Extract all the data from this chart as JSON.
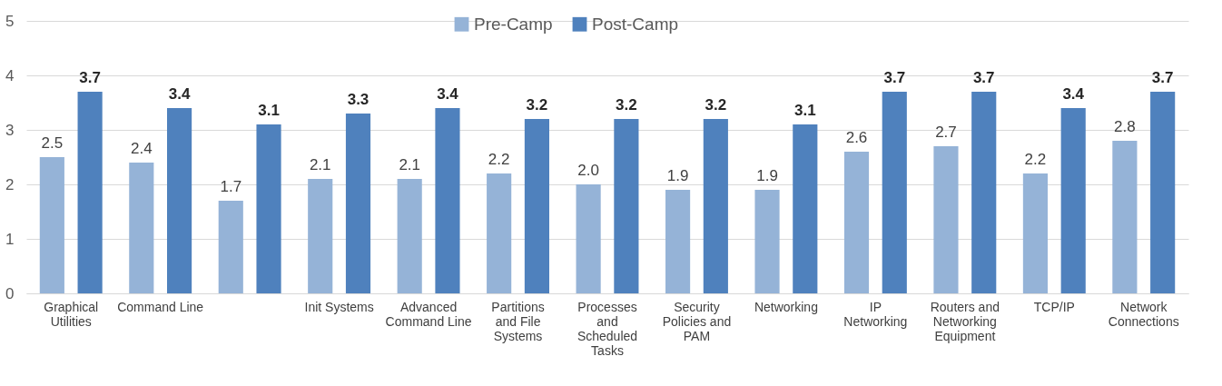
{
  "chart_data": {
    "type": "bar",
    "categories": [
      "Graphical Utilities",
      "Command Line",
      null,
      "Init Systems",
      "Advanced Command Line",
      "Partitions and File Systems",
      "Processes and Scheduled Tasks",
      "Security Policies and PAM",
      "Networking",
      "IP Networking",
      "Routers and Networking Equipment",
      "TCP/IP",
      "Network Connections"
    ],
    "series": [
      {
        "name": "Pre-Camp",
        "color": "#95b3d7",
        "values": [
          2.5,
          2.4,
          1.7,
          2.1,
          2.1,
          2.2,
          2.0,
          1.9,
          1.9,
          2.6,
          2.7,
          2.2,
          2.8
        ],
        "value_labels": [
          "2.5",
          "2.4",
          "1.7",
          "2.1",
          "2.1",
          "2.2",
          "2.0",
          "1.9",
          "1.9",
          "2.6",
          "2.7",
          "2.2",
          "2.8"
        ]
      },
      {
        "name": "Post-Camp",
        "color": "#4f81bd",
        "values": [
          3.7,
          3.4,
          3.1,
          3.3,
          3.4,
          3.2,
          3.2,
          3.2,
          3.1,
          3.7,
          3.7,
          3.4,
          3.7
        ],
        "value_labels": [
          "3.7",
          "3.4",
          "3.1",
          "3.3",
          "3.4",
          "3.2",
          "3.2",
          "3.2",
          "3.1",
          "3.7",
          "3.7",
          "3.4",
          "3.7"
        ]
      }
    ],
    "ylim": [
      0,
      5
    ],
    "yticks": [
      0,
      1,
      2,
      3,
      4,
      5
    ],
    "grid": "y",
    "legend": "top"
  }
}
